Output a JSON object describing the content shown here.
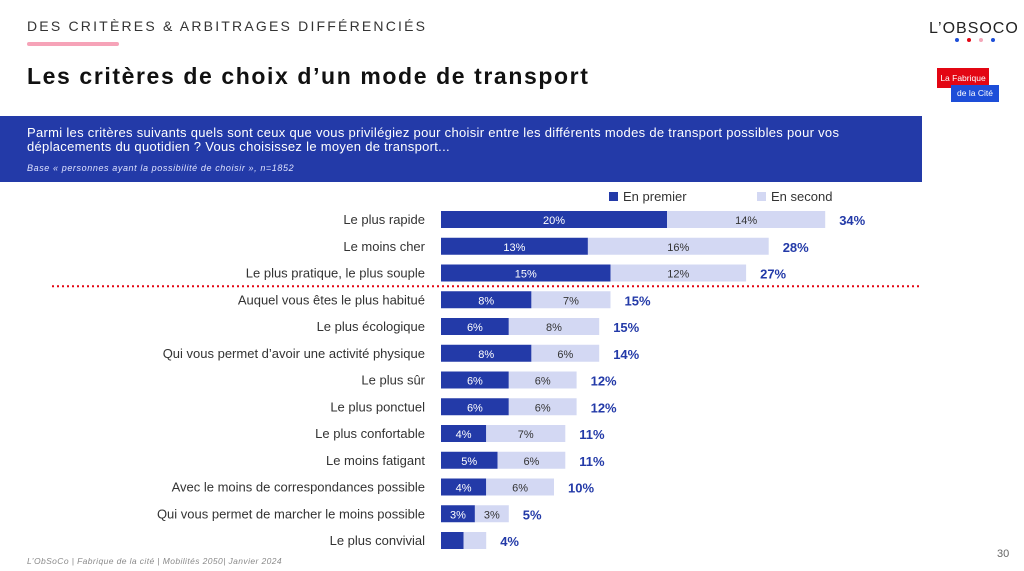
{
  "header": {
    "section_title": "DES CRITÈRES & ARBITRAGES DIFFÉRENCIÉS",
    "title": "Les critères de choix d’un mode de transport"
  },
  "logo": {
    "text": "L’OBSOCO",
    "dot_colors": [
      "#1d4ed8",
      "#e30613",
      "#f4a7b9",
      "#1d4ed8"
    ]
  },
  "badge": {
    "line1": "La Fabrique",
    "line2": "de la Cité"
  },
  "question": {
    "text": "Parmi les critères suivants quels sont ceux que vous privilégiez pour choisir entre les différents modes de transport possibles pour vos déplacements du quotidien ? Vous choisissez le moyen de transport...",
    "base": "Base « personnes ayant la possibilité de choisir », n=1852"
  },
  "colors": {
    "first": "#233aa8",
    "second": "#d3d8f3",
    "total": "#233aa8",
    "divider": "#e30613",
    "question_bg": "#233aa8"
  },
  "chart_data": {
    "type": "bar",
    "orientation": "horizontal",
    "stacked": true,
    "categories": [
      "Le plus rapide",
      "Le moins cher",
      "Le plus pratique, le plus souple",
      "Auquel vous êtes le plus habitué",
      "Le plus écologique",
      "Qui vous permet d’avoir une activité physique",
      "Le plus sûr",
      "Le plus ponctuel",
      "Le plus confortable",
      "Le moins fatigant",
      "Avec le moins de correspondances possible",
      "Qui vous permet de marcher le moins possible",
      "Le plus convivial"
    ],
    "series": [
      {
        "name": "En premier",
        "values": [
          20,
          13,
          15,
          8,
          6,
          8,
          6,
          6,
          4,
          5,
          4,
          3,
          2
        ],
        "labels": [
          "20%",
          "13%",
          "15%",
          "8%",
          "6%",
          "8%",
          "6%",
          "6%",
          "4%",
          "5%",
          "4%",
          "3%",
          ""
        ]
      },
      {
        "name": "En second",
        "values": [
          14,
          16,
          12,
          7,
          8,
          6,
          6,
          6,
          7,
          6,
          6,
          3,
          2
        ],
        "labels": [
          "14%",
          "16%",
          "12%",
          "7%",
          "8%",
          "6%",
          "6%",
          "6%",
          "7%",
          "6%",
          "6%",
          "3%",
          ""
        ]
      }
    ],
    "totals": [
      "34%",
      "28%",
      "27%",
      "15%",
      "15%",
      "14%",
      "12%",
      "12%",
      "11%",
      "11%",
      "10%",
      "5%",
      "4%"
    ],
    "divider_after_index": 2,
    "unit": "%",
    "legend_position": "top"
  },
  "footer": {
    "text": "L’ObSoCo | Fabrique de la cité | Mobilités 2050| Janvier 2024",
    "page_number": "30"
  }
}
